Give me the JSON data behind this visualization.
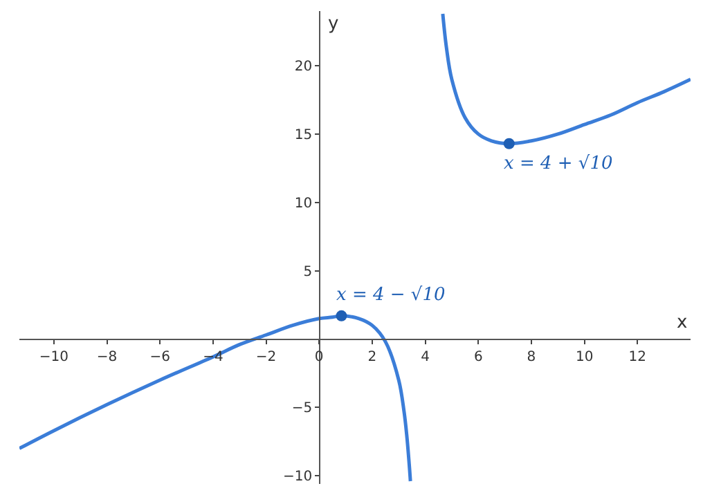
{
  "chart_data": {
    "type": "line",
    "xlabel": "x",
    "ylabel": "y",
    "xlim": [
      -11.3,
      14
    ],
    "ylim": [
      -10.6,
      24
    ],
    "xticks": [
      -10,
      -8,
      -6,
      -4,
      -2,
      0,
      2,
      4,
      6,
      8,
      10,
      12
    ],
    "yticks": [
      -10,
      -5,
      5,
      10,
      15,
      20
    ],
    "marker": "none",
    "line_style": "solid",
    "series": [
      {
        "color": "#3b7dd8",
        "x": [
          -11.3,
          -10,
          -8,
          -6,
          -4,
          -3,
          -2,
          -1,
          0,
          0.5,
          0.84,
          1.5,
          2,
          2.5,
          3,
          3.2,
          3.3,
          3.4,
          3.44
        ],
        "values": [
          -8,
          -6.7,
          -4.8,
          -3,
          -1.3,
          -0.4,
          0.3,
          1,
          1.5,
          1.6,
          1.7,
          1.5,
          1,
          -0.2,
          -3,
          -5.3,
          -7,
          -9.3,
          -10.4
        ]
      },
      {
        "color": "#3b7dd8",
        "x": [
          4.66,
          4.8,
          5,
          5.5,
          6,
          6.5,
          7.16,
          8,
          9,
          10,
          11,
          12,
          13,
          14
        ],
        "values": [
          23.8,
          21.3,
          19,
          16.2,
          15,
          14.5,
          14.3,
          14.5,
          15,
          15.7,
          16.4,
          17.3,
          18.1,
          19
        ]
      },
      {
        "type": "scatter",
        "marker": "circle",
        "color": "#1f5fb4",
        "x": [
          0.84,
          7.16
        ],
        "values": [
          1.7,
          14.3
        ]
      }
    ],
    "annotations": [
      {
        "text": "x = 4 − √10",
        "x": 0.84,
        "y": 1.7
      },
      {
        "text": "x = 4 + √10",
        "x": 7.16,
        "y": 14.3
      }
    ]
  }
}
